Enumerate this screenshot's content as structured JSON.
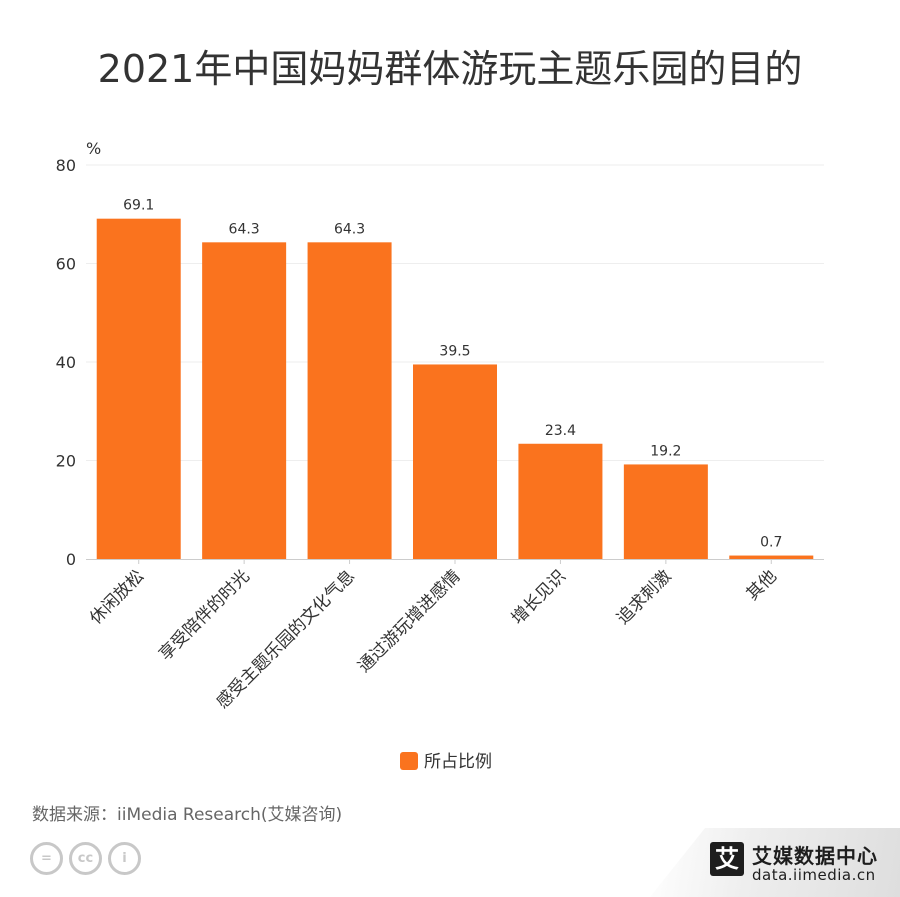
{
  "title": "2021年中国妈妈群体游玩主题乐园的目的",
  "source": "数据来源：iiMedia Research(艾媒咨询)",
  "logo": {
    "mark": "艾",
    "name": "艾媒数据中心",
    "url": "data.iimedia.cn"
  },
  "license_icons": [
    "equals-icon",
    "cc-icon",
    "person-icon"
  ],
  "license_glyphs": [
    "=",
    "cc",
    "i"
  ],
  "colors": {
    "bar": "#fa731e",
    "axis": "#cccccc",
    "grid": "#eeeeee",
    "text": "#333333"
  },
  "chart_data": {
    "type": "bar",
    "unit_label": "%",
    "categories": [
      "休闲放松",
      "享受陪伴的时光",
      "感受主题乐园的文化气息",
      "通过游玩增进感情",
      "增长见识",
      "追求刺激",
      "其他"
    ],
    "series": [
      {
        "name": "所占比例",
        "values": [
          69.1,
          64.3,
          64.3,
          39.5,
          23.4,
          19.2,
          0.7
        ]
      }
    ],
    "ylim": [
      0,
      80
    ],
    "yticks": [
      0,
      20,
      40,
      60,
      80
    ],
    "grid": true,
    "legend": "bottom-center"
  }
}
